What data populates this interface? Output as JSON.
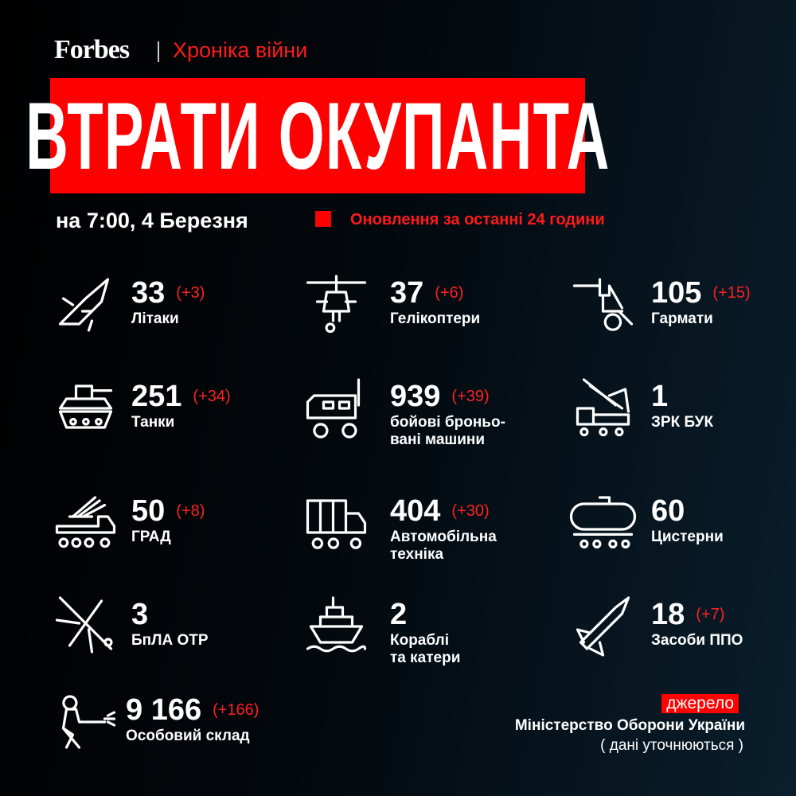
{
  "header": {
    "brand": "Forbes",
    "section": "Хроніка війни",
    "title": "ВТРАТИ ОКУПАНТА",
    "date": "на 7:00, 4 Березня",
    "legend": "Оновлення за останні 24 години"
  },
  "colors": {
    "accent": "#ff0000",
    "background": "#000000"
  },
  "items": [
    {
      "icon": "jet-icon",
      "value": "33",
      "delta": "(+3)",
      "label": "Літаки"
    },
    {
      "icon": "helicopter-icon",
      "value": "37",
      "delta": "(+6)",
      "label": "Гелікоптери"
    },
    {
      "icon": "artillery-icon",
      "value": "105",
      "delta": "(+15)",
      "label": "Гармати"
    },
    {
      "icon": "tank-icon",
      "value": "251",
      "delta": "(+34)",
      "label": "Танки"
    },
    {
      "icon": "armored-vehicle-icon",
      "value": "939",
      "delta": "(+39)",
      "label": "бойові броньо-\nвані машини"
    },
    {
      "icon": "sam-launcher-icon",
      "value": "1",
      "delta": "",
      "label": "ЗРК БУК"
    },
    {
      "icon": "rocket-launcher-icon",
      "value": "50",
      "delta": "(+8)",
      "label": "ГРАД"
    },
    {
      "icon": "truck-icon",
      "value": "404",
      "delta": "(+30)",
      "label": "Автомобільна\nтехніка"
    },
    {
      "icon": "tanker-icon",
      "value": "60",
      "delta": "",
      "label": "Цистерни"
    },
    {
      "icon": "drone-icon",
      "value": "3",
      "delta": "",
      "label": "БпЛА ОТР"
    },
    {
      "icon": "ship-icon",
      "value": "2",
      "delta": "",
      "label": "Кораблі\nта катери"
    },
    {
      "icon": "missile-icon",
      "value": "18",
      "delta": "(+7)",
      "label": "Засоби ППО"
    },
    {
      "icon": "soldier-icon",
      "value": "9 166",
      "delta": "(+166)",
      "label": "Особовий склад"
    }
  ],
  "source": {
    "tag": "джерело",
    "name": "Міністерство Оборони України",
    "note": "( дані уточнюються )"
  }
}
